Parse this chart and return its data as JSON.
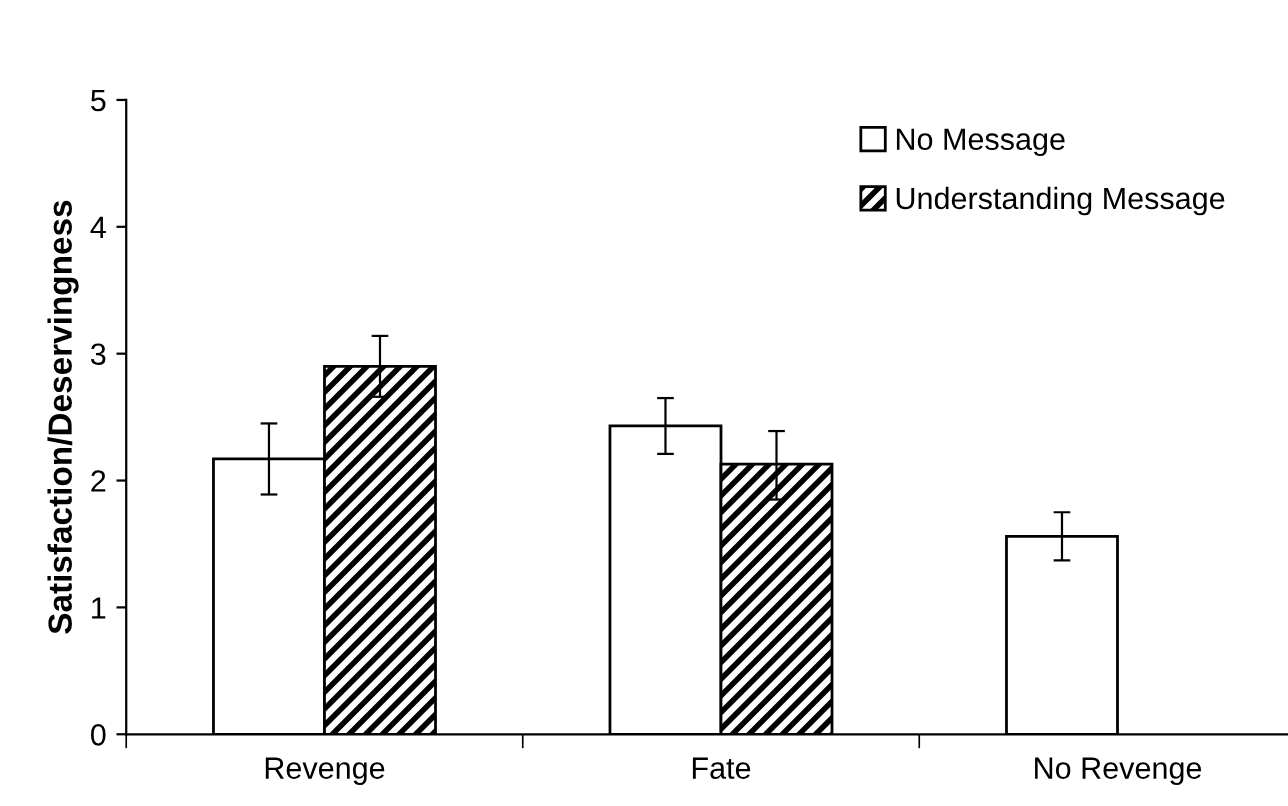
{
  "chart_data": {
    "type": "bar",
    "ylabel": "Satisfaction/Deservingness",
    "categories": [
      "Revenge",
      "Fate",
      "No Revenge"
    ],
    "series": [
      {
        "name": "No Message",
        "color": "#ffffff",
        "values": [
          2.17,
          2.43,
          1.56
        ],
        "errors": [
          [
            1.89,
            2.45
          ],
          [
            2.21,
            2.65
          ],
          [
            1.37,
            1.75
          ]
        ]
      },
      {
        "name": "Understanding Message",
        "color": "#000000",
        "values": [
          2.9,
          2.13,
          null
        ],
        "errors": [
          [
            2.66,
            3.14
          ],
          [
            1.85,
            2.39
          ],
          null
        ]
      }
    ],
    "ylim": [
      0,
      5
    ],
    "yticks": [
      0,
      1,
      2,
      3,
      4,
      5
    ],
    "grid": false,
    "legend": "top right"
  }
}
